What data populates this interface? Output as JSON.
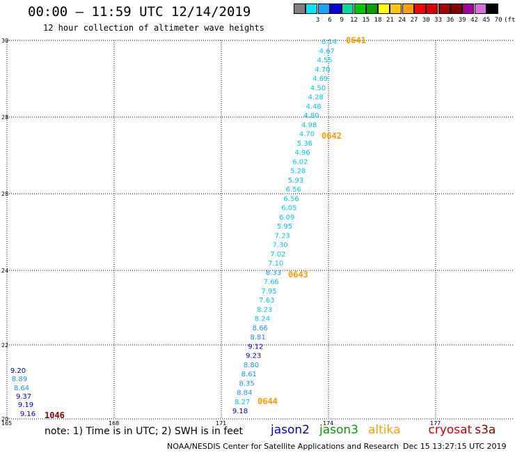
{
  "header": {
    "title": "00:00 – 11:59 UTC 12/14/2019",
    "subtitle": "12 hour collection of altimeter wave heights"
  },
  "legend": {
    "unit": "(ft)",
    "items": [
      {
        "label": "",
        "color": "#808080"
      },
      {
        "label": "3",
        "color": "#00e5ff"
      },
      {
        "label": "6",
        "color": "#1ea0ff"
      },
      {
        "label": "9",
        "color": "#0000d8"
      },
      {
        "label": "12",
        "color": "#00d8a0"
      },
      {
        "label": "15",
        "color": "#00c800"
      },
      {
        "label": "18",
        "color": "#00a000"
      },
      {
        "label": "21",
        "color": "#ffff00"
      },
      {
        "label": "24",
        "color": "#ffc800"
      },
      {
        "label": "27",
        "color": "#ffa000"
      },
      {
        "label": "30",
        "color": "#ff0000"
      },
      {
        "label": "33",
        "color": "#d80000"
      },
      {
        "label": "36",
        "color": "#a00000"
      },
      {
        "label": "39",
        "color": "#800000"
      },
      {
        "label": "42",
        "color": "#a000a0"
      },
      {
        "label": "45",
        "color": "#d870d8"
      },
      {
        "label": "70",
        "color": "#000000"
      }
    ]
  },
  "map": {
    "lat_labels": [
      "30",
      "28",
      "28",
      "24",
      "22",
      "20"
    ],
    "lon_labels": [
      "165",
      "168",
      "171",
      "174",
      "177"
    ],
    "colors": {
      "cyan": "#00c8e8",
      "lightblue": "#1e90ff",
      "blue": "#0000c8",
      "time_orange": "#ff9a00",
      "time_darkred": "#8b0000"
    },
    "track_main": [
      "6.14",
      "4.67",
      "4.55",
      "4.70",
      "4.69",
      "4.50",
      "4.28",
      "4.48",
      "4.80",
      "4.98",
      "4.70",
      "5.36",
      "4.96",
      "6.02",
      "5.28",
      "5.93",
      "6.56",
      "6.56",
      "6.05",
      "6.09",
      "5.95",
      "7.23",
      "7.30",
      "7.02",
      "7.10",
      "8.33",
      "7.66",
      "7.95",
      "7.63",
      "8.23",
      "8.24",
      "8.66",
      "8.81",
      "9.12",
      "9.23",
      "8.80",
      "8.61",
      "8.35",
      "8.84",
      "8.27",
      "9.18"
    ],
    "track_west": [
      "9.20",
      "8.89",
      "8.64",
      "9.37",
      "9.19",
      "9.16"
    ],
    "times": [
      {
        "label": "0641",
        "color": "#ff9a00"
      },
      {
        "label": "0642",
        "color": "#ff9a00"
      },
      {
        "label": "0643",
        "color": "#ff9a00"
      },
      {
        "label": "0644",
        "color": "#ff9a00"
      },
      {
        "label": "1046",
        "color": "#8b0000"
      }
    ]
  },
  "footer": {
    "note": "note: 1) Time is in UTC; 2) SWH is in feet",
    "satellites": [
      {
        "name": "jason2",
        "color": "#0000d0"
      },
      {
        "name": "jason3",
        "color": "#00a000"
      },
      {
        "name": "altika",
        "color": "#ffa000"
      },
      {
        "name": "cryosat",
        "color": "#d00000"
      },
      {
        "name": "s3a",
        "color": "#8b0000"
      }
    ],
    "credit": "NOAA/NESDIS Center for Satellite Applications and Research",
    "timestamp": "Dec 15 13:27:15 UTC 2019"
  }
}
